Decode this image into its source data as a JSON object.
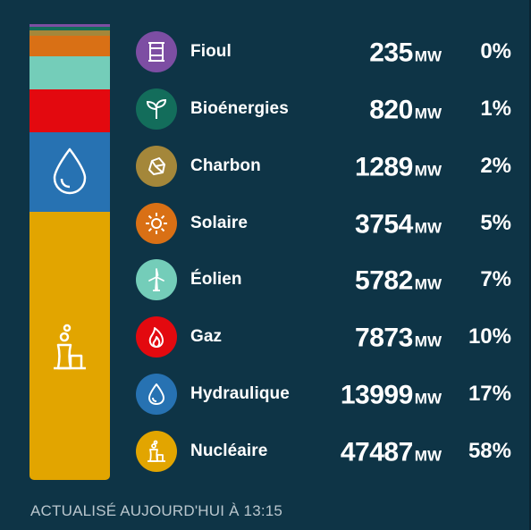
{
  "sources": [
    {
      "name": "Fioul",
      "value": "235",
      "unit": "MW",
      "percent": "0%",
      "color": "#7d4ea3",
      "icon": "oil-barrel-icon",
      "bar_fraction": 0.005
    },
    {
      "name": "Bioénergies",
      "value": "820",
      "unit": "MW",
      "percent": "1%",
      "color": "#136d5b",
      "icon": "sprout-icon",
      "bar_fraction": 0.008
    },
    {
      "name": "Charbon",
      "value": "1289",
      "unit": "MW",
      "percent": "2%",
      "color": "#a4873a",
      "icon": "coal-icon",
      "bar_fraction": 0.012
    },
    {
      "name": "Solaire",
      "value": "3754",
      "unit": "MW",
      "percent": "5%",
      "color": "#d97015",
      "icon": "sun-icon",
      "bar_fraction": 0.045
    },
    {
      "name": "Éolien",
      "value": "5782",
      "unit": "MW",
      "percent": "7%",
      "color": "#74cdb9",
      "icon": "wind-turbine-icon",
      "bar_fraction": 0.073
    },
    {
      "name": "Gaz",
      "value": "7873",
      "unit": "MW",
      "percent": "10%",
      "color": "#e3090f",
      "icon": "flame-icon",
      "bar_fraction": 0.095
    },
    {
      "name": "Hydraulique",
      "value": "13999",
      "unit": "MW",
      "percent": "17%",
      "color": "#2772b2",
      "icon": "water-drop-icon",
      "bar_fraction": 0.173
    },
    {
      "name": "Nucléaire",
      "value": "47487",
      "unit": "MW",
      "percent": "58%",
      "color": "#e2a500",
      "icon": "nuclear-plant-icon",
      "bar_fraction": 0.589
    }
  ],
  "footer": {
    "updated": "ACTUALISÉ AUJOURD'HUI À 13:15"
  }
}
